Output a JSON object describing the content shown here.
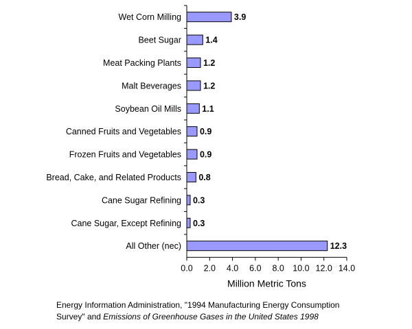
{
  "chart_data": {
    "type": "bar",
    "orientation": "horizontal",
    "categories": [
      "Wet Corn Milling",
      "Beet Sugar",
      "Meat Packing Plants",
      "Malt Beverages",
      "Soybean Oil Mills",
      "Canned Fruits and Vegetables",
      "Frozen Fruits and Vegetables",
      "Bread, Cake, and Related Products",
      "Cane Sugar Refining",
      "Cane Sugar, Except Refining",
      "All Other (nec)"
    ],
    "values": [
      3.9,
      1.4,
      1.2,
      1.2,
      1.1,
      0.9,
      0.9,
      0.8,
      0.3,
      0.3,
      12.3
    ],
    "data_labels": [
      "3.9",
      "1.4",
      "1.2",
      "1.2",
      "1.1",
      "0.9",
      "0.9",
      "0.8",
      "0.3",
      "0.3",
      "12.3"
    ],
    "xlabel": "Million Metric Tons",
    "xlim": [
      0,
      14
    ],
    "xticks": [
      "0.0",
      "2.0",
      "4.0",
      "6.0",
      "8.0",
      "10.0",
      "12.0",
      "14.0"
    ],
    "grid": false,
    "bar_color": "#9999ff",
    "bar_edge_color": "#000000"
  },
  "source": {
    "line1": "Energy Information Administration, \"1994 Manufacturing Energy Consumption",
    "line2_prefix": "Survey\" and ",
    "line2_italic": "Emissions of Greenhouse Gases in the United States 1998"
  }
}
